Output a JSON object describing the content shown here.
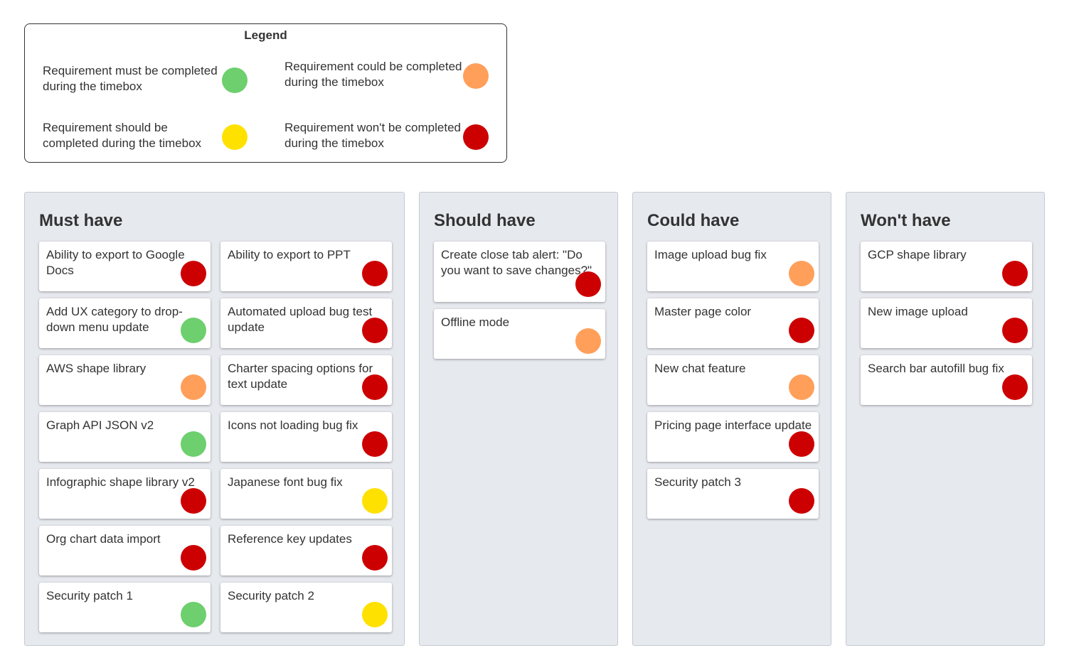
{
  "colors": {
    "must": "#6dcf6d",
    "should": "#ffe100",
    "could": "#ff9f5a",
    "wont": "#cc0000"
  },
  "legend": {
    "title": "Legend",
    "items": [
      {
        "key": "must",
        "text": "Requirement must be completed during the timebox"
      },
      {
        "key": "could",
        "text": "Requirement could be completed during the timebox"
      },
      {
        "key": "should",
        "text": "Requirement should be completed during the timebox"
      },
      {
        "key": "wont",
        "text": "Requirement won't be completed during the timebox"
      }
    ]
  },
  "columns": [
    {
      "title": "Must have",
      "cards": [
        {
          "text": "Ability to export to Google Docs",
          "priority": "wont"
        },
        {
          "text": "Ability to export to PPT",
          "priority": "wont"
        },
        {
          "text": "Add UX category to drop-down menu  update",
          "priority": "must"
        },
        {
          "text": "Automated upload bug test update",
          "priority": "wont"
        },
        {
          "text": "AWS shape library",
          "priority": "could"
        },
        {
          "text": "Charter spacing options for text update",
          "priority": "wont"
        },
        {
          "text": "Graph API JSON v2",
          "priority": "must"
        },
        {
          "text": "Icons not loading bug fix",
          "priority": "wont"
        },
        {
          "text": "Infographic shape library v2",
          "priority": "wont"
        },
        {
          "text": "Japanese font bug fix",
          "priority": "should"
        },
        {
          "text": "Org chart data import",
          "priority": "wont"
        },
        {
          "text": "Reference key updates",
          "priority": "wont"
        },
        {
          "text": "Security patch 1",
          "priority": "must"
        },
        {
          "text": "Security patch 2",
          "priority": "should"
        }
      ]
    },
    {
      "title": "Should have",
      "cards": [
        {
          "text": "Create close tab alert: \"Do you want to save changes?\"",
          "priority": "wont"
        },
        {
          "text": "Offline mode",
          "priority": "could"
        }
      ]
    },
    {
      "title": "Could have",
      "cards": [
        {
          "text": "Image upload bug fix",
          "priority": "could"
        },
        {
          "text": "Master page color",
          "priority": "wont"
        },
        {
          "text": "New chat feature",
          "priority": "could"
        },
        {
          "text": "Pricing page interface update",
          "priority": "wont"
        },
        {
          "text": "Security patch 3",
          "priority": "wont"
        }
      ]
    },
    {
      "title": "Won't have",
      "cards": [
        {
          "text": "GCP shape library",
          "priority": "wont"
        },
        {
          "text": "New image upload",
          "priority": "wont"
        },
        {
          "text": "Search bar autofill bug fix",
          "priority": "wont"
        }
      ]
    }
  ]
}
